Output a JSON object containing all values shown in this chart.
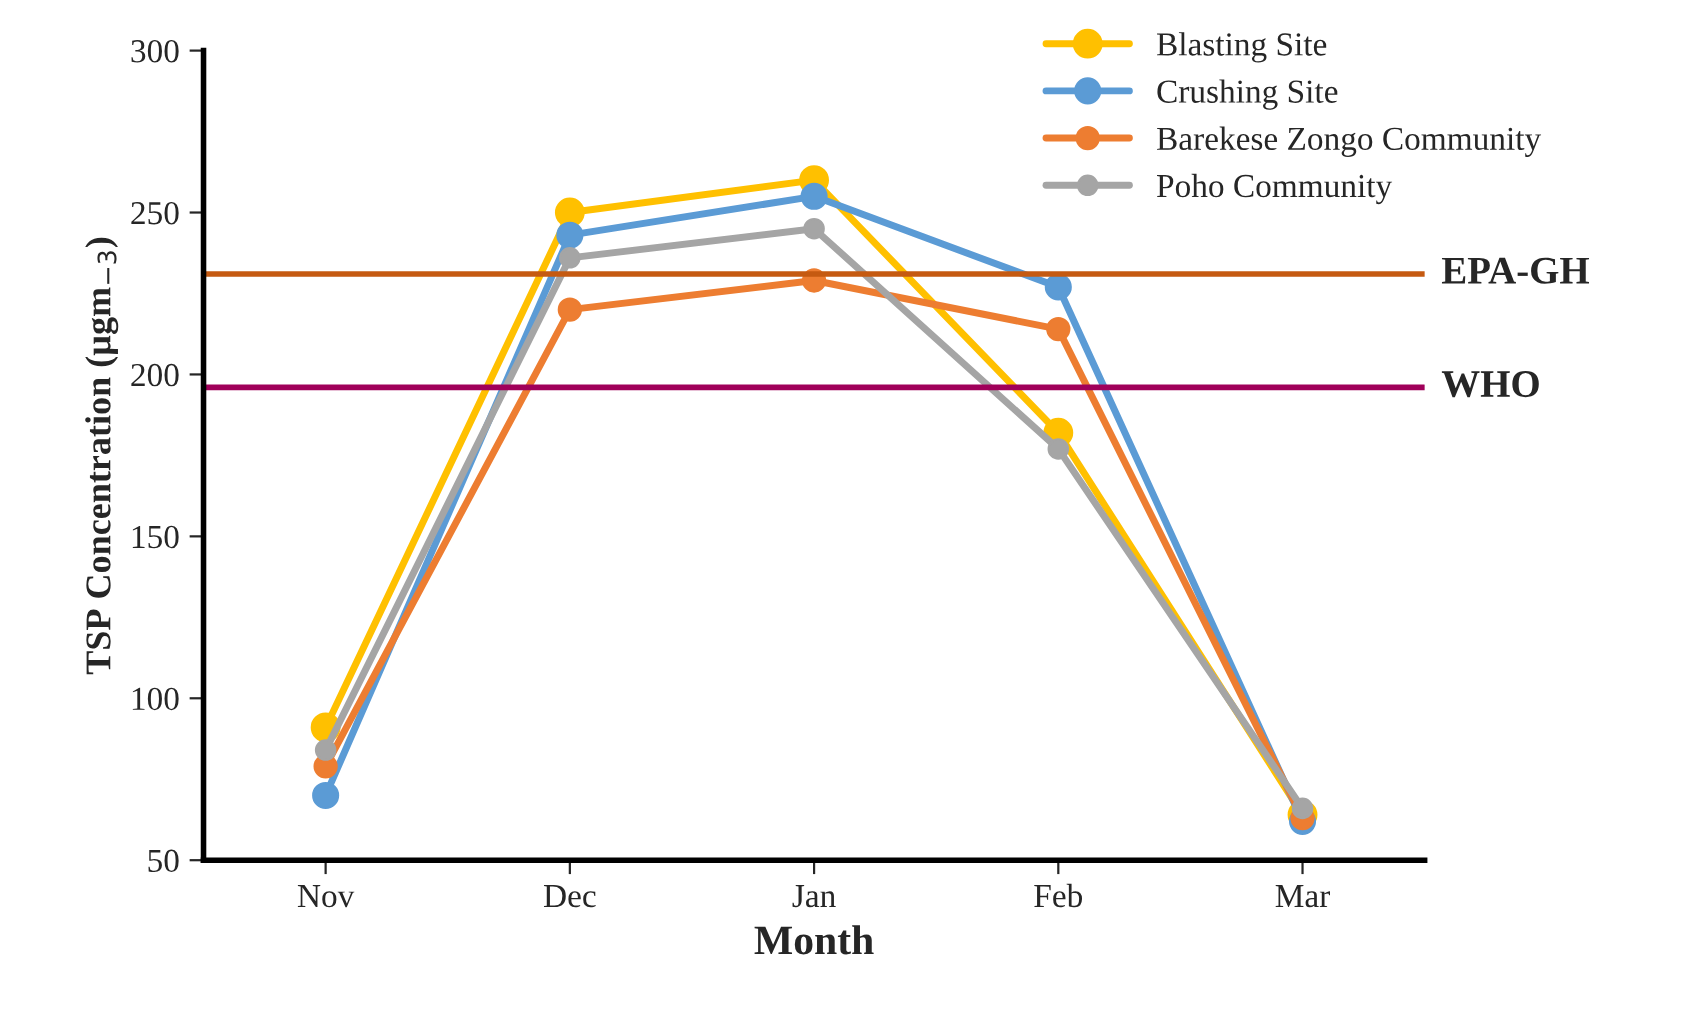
{
  "chart_data": {
    "type": "line",
    "xlabel": "Month",
    "ylabel": "TSP Concentration (µgm$_{−3}$)",
    "categories": [
      "Nov",
      "Dec",
      "Jan",
      "Feb",
      "Mar"
    ],
    "series": [
      {
        "name": "Blasting Site",
        "color": "#ffc000",
        "values": [
          91,
          250,
          260,
          182,
          64
        ]
      },
      {
        "name": "Crushing Site",
        "color": "#5b9bd5",
        "values": [
          70,
          243,
          255,
          227,
          62
        ]
      },
      {
        "name": "Barekese Zongo Community",
        "color": "#ed7d31",
        "values": [
          79,
          220,
          229,
          214,
          63
        ]
      },
      {
        "name": "Poho Community",
        "color": "#a5a5a5",
        "values": [
          84,
          236,
          245,
          177,
          66
        ]
      }
    ],
    "ylim": [
      50,
      300
    ],
    "yticks": [
      50,
      100,
      150,
      200,
      250,
      300
    ],
    "ref_lines": [
      {
        "axis": "y",
        "value": 231,
        "label": "EPA-GH",
        "color": "#c55a11"
      },
      {
        "axis": "y",
        "value": 196,
        "label": "WHO",
        "color": "#a0005a"
      }
    ],
    "marker": "circle",
    "line_style": "solid",
    "grid": false,
    "legend": "top right"
  }
}
